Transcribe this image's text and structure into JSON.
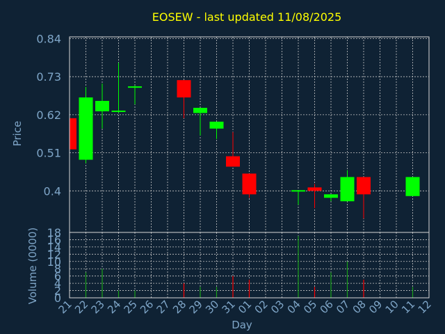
{
  "chart_data": {
    "type": "candlestick",
    "title": "EOSEW - last updated 11/08/2025",
    "xlabel": "Day",
    "price_panel": {
      "ylabel": "Price",
      "ylim": [
        0.28,
        0.845
      ],
      "yticks": [
        "0.84",
        "0.73",
        "0.62",
        "0.51",
        "0.4"
      ],
      "grid": true
    },
    "volume_panel": {
      "ylabel": "Volume (0000)",
      "ylim": [
        0,
        18
      ],
      "yticks": [
        "18",
        "16",
        "14",
        "12",
        "10",
        "8",
        "6",
        "4",
        "2",
        "0"
      ],
      "grid": true
    },
    "x_tick_labels": [
      "21",
      "22",
      "23",
      "24",
      "25",
      "26",
      "27",
      "28",
      "29",
      "30",
      "31",
      "01",
      "02",
      "03",
      "04",
      "05",
      "06",
      "07",
      "08",
      "09",
      "10",
      "11",
      "12"
    ],
    "candles": [
      {
        "day": "21",
        "open": 0.61,
        "high": 0.61,
        "low": 0.52,
        "close": 0.52,
        "volume": 0
      },
      {
        "day": "22",
        "open": 0.49,
        "high": 0.7,
        "low": 0.48,
        "close": 0.67,
        "volume": 7
      },
      {
        "day": "23",
        "open": 0.63,
        "high": 0.71,
        "low": 0.58,
        "close": 0.66,
        "volume": 8
      },
      {
        "day": "24",
        "open": 0.63,
        "high": 0.77,
        "low": 0.625,
        "close": 0.63,
        "volume": 2
      },
      {
        "day": "25",
        "open": 0.697,
        "high": 0.705,
        "low": 0.65,
        "close": 0.7,
        "volume": 2
      },
      {
        "day": "28",
        "open": 0.72,
        "high": 0.72,
        "low": 0.61,
        "close": 0.67,
        "volume": 4
      },
      {
        "day": "29",
        "open": 0.625,
        "high": 0.64,
        "low": 0.56,
        "close": 0.64,
        "volume": 3
      },
      {
        "day": "30",
        "open": 0.58,
        "high": 0.6,
        "low": 0.55,
        "close": 0.6,
        "volume": 3
      },
      {
        "day": "31",
        "open": 0.5,
        "high": 0.57,
        "low": 0.47,
        "close": 0.47,
        "volume": 6
      },
      {
        "day": "01",
        "open": 0.45,
        "high": 0.45,
        "low": 0.38,
        "close": 0.39,
        "volume": 5
      },
      {
        "day": "04",
        "open": 0.4,
        "high": 0.4,
        "low": 0.36,
        "close": 0.4,
        "volume": 17
      },
      {
        "day": "05",
        "open": 0.41,
        "high": 0.42,
        "low": 0.35,
        "close": 0.4,
        "volume": 3
      },
      {
        "day": "06",
        "open": 0.38,
        "high": 0.39,
        "low": 0.37,
        "close": 0.39,
        "volume": 7
      },
      {
        "day": "07",
        "open": 0.37,
        "high": 0.46,
        "low": 0.37,
        "close": 0.44,
        "volume": 10
      },
      {
        "day": "08",
        "open": 0.44,
        "high": 0.44,
        "low": 0.32,
        "close": 0.39,
        "volume": 5
      },
      {
        "day": "11",
        "open": 0.385,
        "high": 0.44,
        "low": 0.385,
        "close": 0.44,
        "volume": 3
      }
    ]
  },
  "colors": {
    "background": "#0f2234",
    "plot_border": "#d8d8d8",
    "grid": "#c8c8c8",
    "title": "#ffff00",
    "axis_text": "#7fa6c8",
    "up": "#00ff00",
    "down": "#ff0000",
    "volume_bar": "#1aa01a"
  }
}
